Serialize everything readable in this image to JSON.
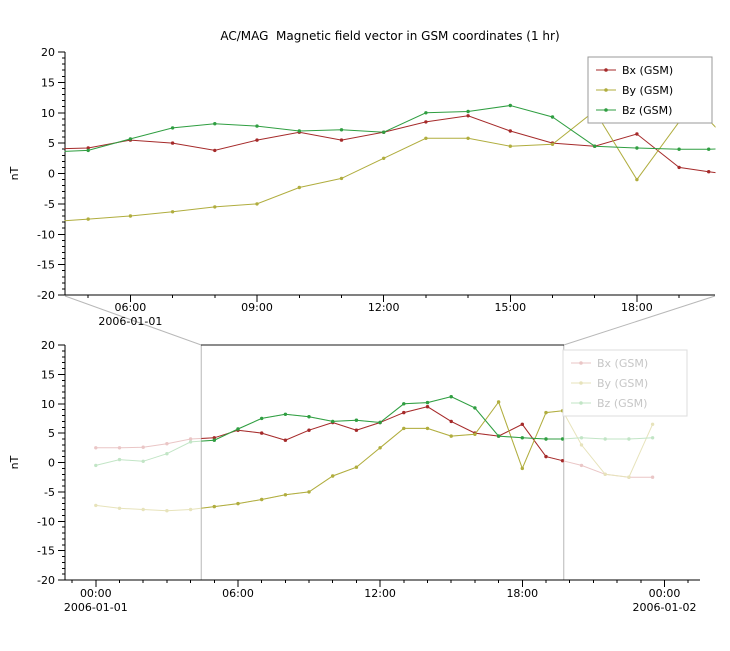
{
  "title": "AC/MAG  Magnetic field vector in GSM coordinates (1 hr)",
  "ylabel": "nT",
  "colors": {
    "bx": "#a52a2a",
    "by": "#b0ad3e",
    "bz": "#2f9e41",
    "bx_faded": "#eac6c6",
    "by_faded": "#e7e3bb",
    "bz_faded": "#c2e5c6",
    "axis": "#000000",
    "connector": "#b8b8b8",
    "selection": "#b8b8b8",
    "selection_top": "#1a1a1a",
    "legend_border": "#999999",
    "legend_border_faded": "#dddddd",
    "legend_text": "#000000",
    "legend_text_faded": "#c6c6c6"
  },
  "chart_data": {
    "type": "line",
    "x_unit": "hours from 2006-01-01 00:00",
    "x_hours": [
      0,
      1,
      2,
      3,
      4,
      5,
      6,
      7,
      8,
      9,
      10,
      11,
      12,
      13,
      14,
      15,
      16,
      17,
      18,
      19,
      19.7,
      20.5,
      21.5,
      22.5,
      23.5
    ],
    "series": [
      {
        "name": "Bx (GSM)",
        "color_key": "bx",
        "values": [
          2.5,
          2.5,
          2.6,
          3.2,
          4.0,
          4.2,
          5.5,
          5.0,
          3.8,
          5.5,
          6.8,
          5.5,
          6.8,
          8.5,
          9.5,
          7.0,
          5.0,
          4.5,
          6.5,
          1.0,
          0.3,
          -0.5,
          -2.0,
          -2.5,
          -2.5
        ]
      },
      {
        "name": "By (GSM)",
        "color_key": "by",
        "values": [
          -7.3,
          -7.8,
          -8.0,
          -8.2,
          -8.0,
          -7.5,
          -7.0,
          -6.3,
          -5.5,
          -5.0,
          -2.3,
          -0.8,
          2.5,
          5.8,
          5.8,
          4.5,
          4.8,
          10.3,
          -1.0,
          8.5,
          8.8,
          3.0,
          -2.0,
          -2.5,
          6.5
        ]
      },
      {
        "name": "Bz (GSM)",
        "color_key": "bz",
        "values": [
          -0.5,
          0.5,
          0.2,
          1.5,
          3.5,
          3.8,
          5.7,
          7.5,
          8.2,
          7.8,
          7.0,
          7.2,
          6.8,
          10.0,
          10.2,
          11.2,
          9.3,
          4.5,
          4.2,
          4.0,
          4.0,
          4.2,
          4.0,
          4.0,
          4.2
        ]
      }
    ],
    "charts": [
      {
        "name": "detail",
        "title": "AC/MAG  Magnetic field vector in GSM coordinates (1 hr)",
        "ylabel": "nT",
        "ylim": [
          -20,
          20
        ],
        "ytick_step": 5,
        "xlim_hours": [
          4.45,
          19.85
        ],
        "xticks": [
          {
            "hour": 6,
            "label": "06:00",
            "sub": "2006-01-01"
          },
          {
            "hour": 9,
            "label": "09:00"
          },
          {
            "hour": 12,
            "label": "12:00"
          },
          {
            "hour": 15,
            "label": "15:00"
          },
          {
            "hour": 18,
            "label": "18:00"
          }
        ],
        "legend": {
          "labels": [
            "Bx (GSM)",
            "By (GSM)",
            "Bz (GSM)"
          ],
          "position": "top-right",
          "faded": false
        }
      },
      {
        "name": "context",
        "ylabel": "nT",
        "ylim": [
          -20,
          20
        ],
        "ytick_step": 5,
        "xlim_hours": [
          -1.3,
          25.5
        ],
        "selection_hours": [
          4.45,
          19.75
        ],
        "xticks": [
          {
            "hour": 0,
            "label": "00:00",
            "sub": "2006-01-01"
          },
          {
            "hour": 6,
            "label": "06:00"
          },
          {
            "hour": 12,
            "label": "12:00"
          },
          {
            "hour": 18,
            "label": "18:00"
          },
          {
            "hour": 24,
            "label": "00:00",
            "sub": "2006-01-02"
          }
        ],
        "legend": {
          "labels": [
            "Bx (GSM)",
            "By (GSM)",
            "Bz (GSM)"
          ],
          "position": "top-right",
          "faded": true
        }
      }
    ]
  }
}
